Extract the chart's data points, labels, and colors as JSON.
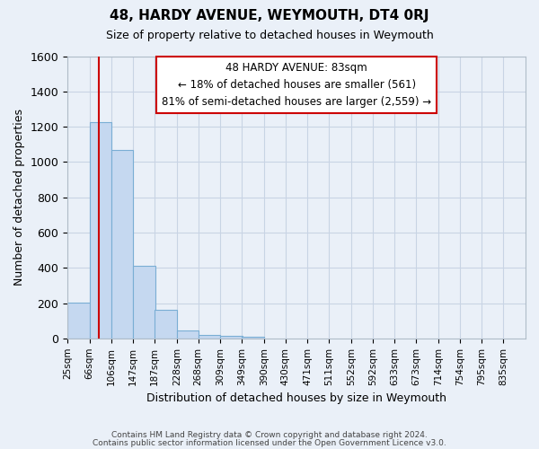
{
  "title": "48, HARDY AVENUE, WEYMOUTH, DT4 0RJ",
  "subtitle": "Size of property relative to detached houses in Weymouth",
  "xlabel": "Distribution of detached houses by size in Weymouth",
  "ylabel": "Number of detached properties",
  "bin_labels": [
    "25sqm",
    "66sqm",
    "106sqm",
    "147sqm",
    "187sqm",
    "228sqm",
    "268sqm",
    "309sqm",
    "349sqm",
    "390sqm",
    "430sqm",
    "471sqm",
    "511sqm",
    "552sqm",
    "592sqm",
    "633sqm",
    "673sqm",
    "714sqm",
    "754sqm",
    "795sqm",
    "835sqm"
  ],
  "bar_values": [
    205,
    1225,
    1070,
    410,
    160,
    45,
    20,
    15,
    10,
    0,
    0,
    0,
    0,
    0,
    0,
    0,
    0,
    0,
    0,
    0
  ],
  "bar_color": "#c5d8f0",
  "bar_edge_color": "#7aaed4",
  "grid_color": "#c8d4e4",
  "background_color": "#eaf0f8",
  "vline_x": 83,
  "vline_color": "#cc0000",
  "annotation_text_line1": "48 HARDY AVENUE: 83sqm",
  "annotation_text_line2": "← 18% of detached houses are smaller (561)",
  "annotation_text_line3": "81% of semi-detached houses are larger (2,559) →",
  "annotation_box_color": "#ffffff",
  "annotation_box_edge": "#cc0000",
  "ylim": [
    0,
    1600
  ],
  "bin_starts": [
    25,
    66,
    106,
    147,
    187,
    228,
    268,
    309,
    349,
    390,
    430,
    471,
    511,
    552,
    592,
    633,
    673,
    714,
    754,
    795
  ],
  "bin_width": 41,
  "footer_line1": "Contains HM Land Registry data © Crown copyright and database right 2024.",
  "footer_line2": "Contains public sector information licensed under the Open Government Licence v3.0."
}
